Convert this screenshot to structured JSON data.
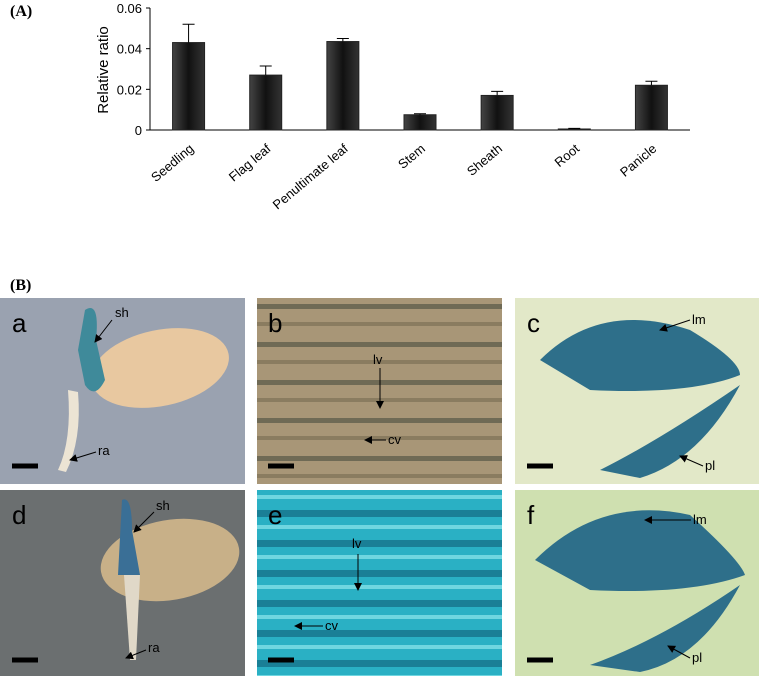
{
  "panel_a_label": "(A)",
  "chart_data": {
    "type": "bar",
    "y_label": "Relative ratio",
    "categories": [
      "Seedling",
      "Flag leaf",
      "Penultimate leaf",
      "Stem",
      "Sheath",
      "Root",
      "Panicle"
    ],
    "values": [
      0.043,
      0.027,
      0.0435,
      0.0075,
      0.017,
      0.0005,
      0.022
    ],
    "errors": [
      0.009,
      0.0045,
      0.0015,
      0.0005,
      0.002,
      0.0003,
      0.002
    ],
    "color": "#222222",
    "ylim": [
      0,
      0.06
    ],
    "yticks": [
      0,
      0.02,
      0.04,
      0.06
    ]
  },
  "panel_b": {
    "label": "(B)",
    "panels": [
      {
        "letter": "a",
        "annotations": [
          "sh",
          "ra"
        ]
      },
      {
        "letter": "b",
        "annotations": [
          "lv",
          "cv"
        ]
      },
      {
        "letter": "c",
        "annotations": [
          "lm",
          "pl"
        ]
      },
      {
        "letter": "d",
        "annotations": [
          "sh",
          "ra"
        ]
      },
      {
        "letter": "e",
        "annotations": [
          "lv",
          "cv"
        ]
      },
      {
        "letter": "f",
        "annotations": [
          "lm",
          "pl"
        ]
      }
    ]
  }
}
